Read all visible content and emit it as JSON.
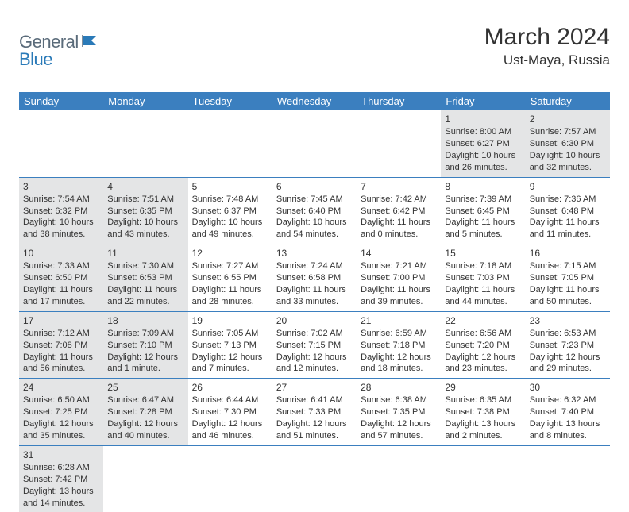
{
  "logo": {
    "text1": "General",
    "text2": "Blue"
  },
  "title": "March 2024",
  "location": "Ust-Maya, Russia",
  "colors": {
    "header_bg": "#3b7fbf",
    "shaded_bg": "#e4e5e6",
    "row_border": "#3b7fbf",
    "logo_grey": "#5a6b7a",
    "logo_blue": "#2a7ab8"
  },
  "daysOfWeek": [
    "Sunday",
    "Monday",
    "Tuesday",
    "Wednesday",
    "Thursday",
    "Friday",
    "Saturday"
  ],
  "weeks": [
    [
      {
        "empty": true
      },
      {
        "empty": true
      },
      {
        "empty": true
      },
      {
        "empty": true
      },
      {
        "empty": true
      },
      {
        "num": "1",
        "shaded": true,
        "sunrise": "Sunrise: 8:00 AM",
        "sunset": "Sunset: 6:27 PM",
        "daylight1": "Daylight: 10 hours",
        "daylight2": "and 26 minutes."
      },
      {
        "num": "2",
        "shaded": true,
        "sunrise": "Sunrise: 7:57 AM",
        "sunset": "Sunset: 6:30 PM",
        "daylight1": "Daylight: 10 hours",
        "daylight2": "and 32 minutes."
      }
    ],
    [
      {
        "num": "3",
        "shaded": true,
        "sunrise": "Sunrise: 7:54 AM",
        "sunset": "Sunset: 6:32 PM",
        "daylight1": "Daylight: 10 hours",
        "daylight2": "and 38 minutes."
      },
      {
        "num": "4",
        "shaded": true,
        "sunrise": "Sunrise: 7:51 AM",
        "sunset": "Sunset: 6:35 PM",
        "daylight1": "Daylight: 10 hours",
        "daylight2": "and 43 minutes."
      },
      {
        "num": "5",
        "shaded": false,
        "sunrise": "Sunrise: 7:48 AM",
        "sunset": "Sunset: 6:37 PM",
        "daylight1": "Daylight: 10 hours",
        "daylight2": "and 49 minutes."
      },
      {
        "num": "6",
        "shaded": false,
        "sunrise": "Sunrise: 7:45 AM",
        "sunset": "Sunset: 6:40 PM",
        "daylight1": "Daylight: 10 hours",
        "daylight2": "and 54 minutes."
      },
      {
        "num": "7",
        "shaded": false,
        "sunrise": "Sunrise: 7:42 AM",
        "sunset": "Sunset: 6:42 PM",
        "daylight1": "Daylight: 11 hours",
        "daylight2": "and 0 minutes."
      },
      {
        "num": "8",
        "shaded": false,
        "sunrise": "Sunrise: 7:39 AM",
        "sunset": "Sunset: 6:45 PM",
        "daylight1": "Daylight: 11 hours",
        "daylight2": "and 5 minutes."
      },
      {
        "num": "9",
        "shaded": false,
        "sunrise": "Sunrise: 7:36 AM",
        "sunset": "Sunset: 6:48 PM",
        "daylight1": "Daylight: 11 hours",
        "daylight2": "and 11 minutes."
      }
    ],
    [
      {
        "num": "10",
        "shaded": true,
        "sunrise": "Sunrise: 7:33 AM",
        "sunset": "Sunset: 6:50 PM",
        "daylight1": "Daylight: 11 hours",
        "daylight2": "and 17 minutes."
      },
      {
        "num": "11",
        "shaded": true,
        "sunrise": "Sunrise: 7:30 AM",
        "sunset": "Sunset: 6:53 PM",
        "daylight1": "Daylight: 11 hours",
        "daylight2": "and 22 minutes."
      },
      {
        "num": "12",
        "shaded": false,
        "sunrise": "Sunrise: 7:27 AM",
        "sunset": "Sunset: 6:55 PM",
        "daylight1": "Daylight: 11 hours",
        "daylight2": "and 28 minutes."
      },
      {
        "num": "13",
        "shaded": false,
        "sunrise": "Sunrise: 7:24 AM",
        "sunset": "Sunset: 6:58 PM",
        "daylight1": "Daylight: 11 hours",
        "daylight2": "and 33 minutes."
      },
      {
        "num": "14",
        "shaded": false,
        "sunrise": "Sunrise: 7:21 AM",
        "sunset": "Sunset: 7:00 PM",
        "daylight1": "Daylight: 11 hours",
        "daylight2": "and 39 minutes."
      },
      {
        "num": "15",
        "shaded": false,
        "sunrise": "Sunrise: 7:18 AM",
        "sunset": "Sunset: 7:03 PM",
        "daylight1": "Daylight: 11 hours",
        "daylight2": "and 44 minutes."
      },
      {
        "num": "16",
        "shaded": false,
        "sunrise": "Sunrise: 7:15 AM",
        "sunset": "Sunset: 7:05 PM",
        "daylight1": "Daylight: 11 hours",
        "daylight2": "and 50 minutes."
      }
    ],
    [
      {
        "num": "17",
        "shaded": true,
        "sunrise": "Sunrise: 7:12 AM",
        "sunset": "Sunset: 7:08 PM",
        "daylight1": "Daylight: 11 hours",
        "daylight2": "and 56 minutes."
      },
      {
        "num": "18",
        "shaded": true,
        "sunrise": "Sunrise: 7:09 AM",
        "sunset": "Sunset: 7:10 PM",
        "daylight1": "Daylight: 12 hours",
        "daylight2": "and 1 minute."
      },
      {
        "num": "19",
        "shaded": false,
        "sunrise": "Sunrise: 7:05 AM",
        "sunset": "Sunset: 7:13 PM",
        "daylight1": "Daylight: 12 hours",
        "daylight2": "and 7 minutes."
      },
      {
        "num": "20",
        "shaded": false,
        "sunrise": "Sunrise: 7:02 AM",
        "sunset": "Sunset: 7:15 PM",
        "daylight1": "Daylight: 12 hours",
        "daylight2": "and 12 minutes."
      },
      {
        "num": "21",
        "shaded": false,
        "sunrise": "Sunrise: 6:59 AM",
        "sunset": "Sunset: 7:18 PM",
        "daylight1": "Daylight: 12 hours",
        "daylight2": "and 18 minutes."
      },
      {
        "num": "22",
        "shaded": false,
        "sunrise": "Sunrise: 6:56 AM",
        "sunset": "Sunset: 7:20 PM",
        "daylight1": "Daylight: 12 hours",
        "daylight2": "and 23 minutes."
      },
      {
        "num": "23",
        "shaded": false,
        "sunrise": "Sunrise: 6:53 AM",
        "sunset": "Sunset: 7:23 PM",
        "daylight1": "Daylight: 12 hours",
        "daylight2": "and 29 minutes."
      }
    ],
    [
      {
        "num": "24",
        "shaded": true,
        "sunrise": "Sunrise: 6:50 AM",
        "sunset": "Sunset: 7:25 PM",
        "daylight1": "Daylight: 12 hours",
        "daylight2": "and 35 minutes."
      },
      {
        "num": "25",
        "shaded": true,
        "sunrise": "Sunrise: 6:47 AM",
        "sunset": "Sunset: 7:28 PM",
        "daylight1": "Daylight: 12 hours",
        "daylight2": "and 40 minutes."
      },
      {
        "num": "26",
        "shaded": false,
        "sunrise": "Sunrise: 6:44 AM",
        "sunset": "Sunset: 7:30 PM",
        "daylight1": "Daylight: 12 hours",
        "daylight2": "and 46 minutes."
      },
      {
        "num": "27",
        "shaded": false,
        "sunrise": "Sunrise: 6:41 AM",
        "sunset": "Sunset: 7:33 PM",
        "daylight1": "Daylight: 12 hours",
        "daylight2": "and 51 minutes."
      },
      {
        "num": "28",
        "shaded": false,
        "sunrise": "Sunrise: 6:38 AM",
        "sunset": "Sunset: 7:35 PM",
        "daylight1": "Daylight: 12 hours",
        "daylight2": "and 57 minutes."
      },
      {
        "num": "29",
        "shaded": false,
        "sunrise": "Sunrise: 6:35 AM",
        "sunset": "Sunset: 7:38 PM",
        "daylight1": "Daylight: 13 hours",
        "daylight2": "and 2 minutes."
      },
      {
        "num": "30",
        "shaded": false,
        "sunrise": "Sunrise: 6:32 AM",
        "sunset": "Sunset: 7:40 PM",
        "daylight1": "Daylight: 13 hours",
        "daylight2": "and 8 minutes."
      }
    ],
    [
      {
        "num": "31",
        "shaded": true,
        "sunrise": "Sunrise: 6:28 AM",
        "sunset": "Sunset: 7:42 PM",
        "daylight1": "Daylight: 13 hours",
        "daylight2": "and 14 minutes."
      },
      {
        "empty": true
      },
      {
        "empty": true
      },
      {
        "empty": true
      },
      {
        "empty": true
      },
      {
        "empty": true
      },
      {
        "empty": true
      }
    ]
  ]
}
